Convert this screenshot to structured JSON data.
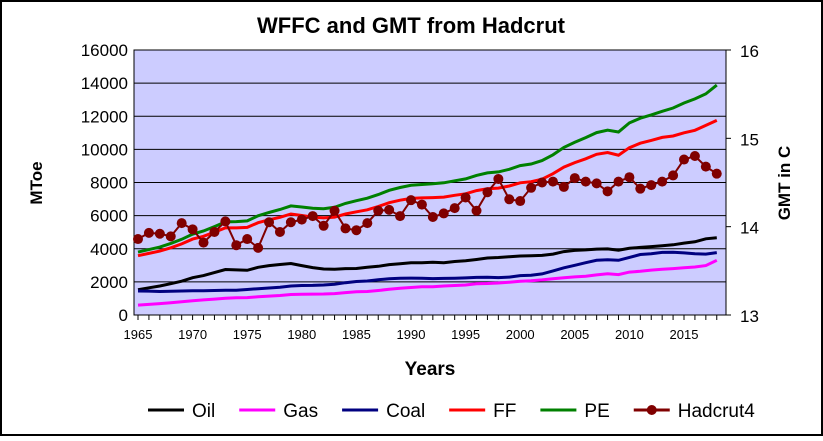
{
  "chart_data": {
    "type": "line",
    "title": "WFFC and GMT from Hadcrut",
    "xlabel": "Years",
    "ylabel": "MToe",
    "y2label": "GMT in C",
    "xlim": [
      1965,
      2018
    ],
    "ylim": [
      0,
      16000
    ],
    "y2lim": [
      13,
      16
    ],
    "xticks": [
      1965,
      1970,
      1975,
      1980,
      1985,
      1990,
      1995,
      2000,
      2005,
      2010,
      2015
    ],
    "yticks": [
      0,
      2000,
      4000,
      6000,
      8000,
      10000,
      12000,
      14000,
      16000
    ],
    "y2ticks": [
      13,
      14,
      15,
      16
    ],
    "grid": true,
    "background": "#ccccff",
    "legend_position": "bottom",
    "series": [
      {
        "name": "Oil",
        "color": "#000000",
        "axis": "left",
        "values": [
          1530,
          1640,
          1750,
          1890,
          2040,
          2250,
          2380,
          2560,
          2750,
          2720,
          2700,
          2880,
          2980,
          3050,
          3110,
          2980,
          2860,
          2780,
          2760,
          2800,
          2810,
          2880,
          2940,
          3040,
          3090,
          3150,
          3150,
          3180,
          3160,
          3230,
          3270,
          3350,
          3440,
          3470,
          3520,
          3560,
          3580,
          3600,
          3680,
          3830,
          3900,
          3930,
          3980,
          3990,
          3910,
          4030,
          4080,
          4130,
          4180,
          4240,
          4340,
          4420,
          4600,
          4660
        ]
      },
      {
        "name": "Gas",
        "color": "#ff00ff",
        "axis": "left",
        "values": [
          600,
          640,
          690,
          740,
          800,
          860,
          910,
          960,
          1010,
          1040,
          1050,
          1100,
          1140,
          1180,
          1240,
          1250,
          1260,
          1270,
          1290,
          1350,
          1400,
          1420,
          1480,
          1550,
          1620,
          1660,
          1700,
          1710,
          1750,
          1780,
          1810,
          1890,
          1900,
          1930,
          1980,
          2040,
          2070,
          2120,
          2190,
          2250,
          2300,
          2340,
          2420,
          2490,
          2440,
          2590,
          2640,
          2710,
          2760,
          2800,
          2850,
          2900,
          2980,
          3300
        ]
      },
      {
        "name": "Coal",
        "color": "#000080",
        "axis": "left",
        "values": [
          1450,
          1440,
          1420,
          1430,
          1450,
          1470,
          1460,
          1480,
          1500,
          1500,
          1540,
          1590,
          1630,
          1670,
          1750,
          1780,
          1790,
          1810,
          1860,
          1950,
          2020,
          2050,
          2130,
          2190,
          2220,
          2230,
          2220,
          2200,
          2210,
          2220,
          2240,
          2270,
          2280,
          2260,
          2290,
          2380,
          2400,
          2480,
          2660,
          2850,
          3000,
          3160,
          3300,
          3330,
          3300,
          3480,
          3650,
          3700,
          3780,
          3790,
          3750,
          3700,
          3680,
          3770
        ]
      },
      {
        "name": "FF",
        "color": "#ff0000",
        "axis": "left",
        "values": [
          3580,
          3720,
          3860,
          4060,
          4290,
          4580,
          4750,
          5000,
          5260,
          5260,
          5290,
          5570,
          5750,
          5900,
          6100,
          6010,
          5910,
          5860,
          5910,
          6100,
          6230,
          6350,
          6550,
          6780,
          6930,
          7040,
          7070,
          7090,
          7120,
          7230,
          7320,
          7510,
          7620,
          7660,
          7790,
          7980,
          8050,
          8200,
          8530,
          8930,
          9200,
          9430,
          9700,
          9810,
          9650,
          10100,
          10370,
          10540,
          10720,
          10810,
          11000,
          11150,
          11450,
          11750
        ]
      },
      {
        "name": "PE",
        "color": "#008000",
        "axis": "left",
        "values": [
          3800,
          3950,
          4100,
          4320,
          4570,
          4880,
          5070,
          5340,
          5620,
          5640,
          5680,
          5990,
          6190,
          6370,
          6590,
          6520,
          6440,
          6420,
          6500,
          6740,
          6900,
          7050,
          7270,
          7530,
          7700,
          7830,
          7880,
          7920,
          7980,
          8100,
          8220,
          8430,
          8580,
          8640,
          8800,
          9020,
          9120,
          9320,
          9670,
          10120,
          10430,
          10710,
          11010,
          11160,
          11050,
          11600,
          11880,
          12080,
          12300,
          12500,
          12800,
          13050,
          13350,
          13880
        ]
      },
      {
        "name": "Hadcrut4",
        "color": "#800000",
        "axis": "right",
        "marker": "circle",
        "values": [
          13.86,
          13.93,
          13.92,
          13.89,
          14.04,
          13.97,
          13.82,
          13.94,
          14.06,
          13.79,
          13.86,
          13.76,
          14.05,
          13.94,
          14.05,
          14.08,
          14.12,
          14.01,
          14.18,
          13.98,
          13.96,
          14.04,
          14.18,
          14.19,
          14.12,
          14.3,
          14.25,
          14.11,
          14.15,
          14.21,
          14.33,
          14.18,
          14.39,
          14.54,
          14.31,
          14.29,
          14.44,
          14.5,
          14.51,
          14.45,
          14.55,
          14.51,
          14.49,
          14.4,
          14.51,
          14.56,
          14.43,
          14.47,
          14.51,
          14.58,
          14.76,
          14.8,
          14.68,
          14.6
        ]
      }
    ]
  }
}
